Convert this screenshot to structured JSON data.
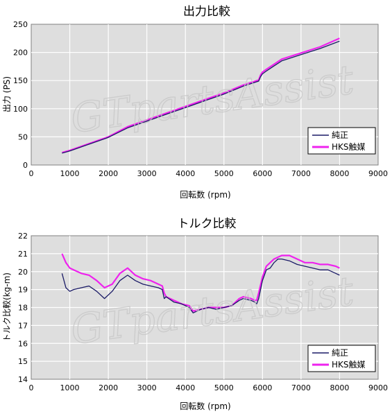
{
  "watermark": "GTpartsAssist",
  "colors": {
    "plot_bg": "#dedede",
    "grid": "#ffffff",
    "stock": "#1a1a66",
    "hks": "#ee22ee"
  },
  "chart_data": [
    {
      "type": "line",
      "title": "出力比較",
      "xlabel": "回転数 (rpm)",
      "ylabel": "出力 (PS)",
      "xlim": [
        0,
        9000
      ],
      "ylim": [
        0,
        250
      ],
      "xticks": [
        0,
        1000,
        2000,
        3000,
        4000,
        5000,
        6000,
        7000,
        8000,
        9000
      ],
      "yticks": [
        0,
        50,
        100,
        150,
        200,
        250
      ],
      "grid": true,
      "legend_position": "bottom-right",
      "series": [
        {
          "name": "純正",
          "color": "#1a1a66",
          "x": [
            800,
            1000,
            1500,
            2000,
            2500,
            3000,
            3500,
            4000,
            4500,
            5000,
            5500,
            5900,
            5950,
            6000,
            6100,
            6300,
            6500,
            7000,
            7500,
            8000
          ],
          "y": [
            21,
            25,
            37,
            49,
            66,
            78,
            90,
            102,
            114,
            126,
            140,
            149,
            157,
            162,
            167,
            176,
            185,
            196,
            207,
            220
          ]
        },
        {
          "name": "HKS触媒",
          "color": "#ee22ee",
          "x": [
            800,
            1000,
            1500,
            2000,
            2500,
            3000,
            3500,
            4000,
            4500,
            5000,
            5500,
            5900,
            5950,
            6000,
            6100,
            6300,
            6500,
            7000,
            7500,
            8000
          ],
          "y": [
            22,
            26,
            38,
            50,
            68,
            80,
            92,
            104,
            116,
            128,
            142,
            151,
            160,
            165,
            170,
            179,
            188,
            199,
            210,
            225
          ]
        }
      ]
    },
    {
      "type": "line",
      "title": "トルク比較",
      "xlabel": "回転数 (rpm)",
      "ylabel": "トルク比較(kg-m)",
      "xlim": [
        0,
        9000
      ],
      "ylim": [
        14,
        22
      ],
      "xticks": [
        0,
        1000,
        2000,
        3000,
        4000,
        5000,
        6000,
        7000,
        8000,
        9000
      ],
      "yticks": [
        14,
        15,
        16,
        17,
        18,
        19,
        20,
        21,
        22
      ],
      "grid": true,
      "legend_position": "bottom-right",
      "series": [
        {
          "name": "純正",
          "color": "#1a1a66",
          "x": [
            800,
            900,
            1000,
            1100,
            1300,
            1500,
            1700,
            1900,
            2100,
            2300,
            2500,
            2700,
            2900,
            3100,
            3300,
            3400,
            3450,
            3500,
            3700,
            3900,
            4100,
            4200,
            4400,
            4600,
            4800,
            5000,
            5200,
            5400,
            5500,
            5700,
            5800,
            5850,
            5900,
            6000,
            6100,
            6200,
            6300,
            6400,
            6500,
            6700,
            6900,
            7100,
            7300,
            7500,
            7700,
            7900,
            8000
          ],
          "y": [
            19.9,
            19.1,
            18.9,
            19.0,
            19.1,
            19.2,
            18.9,
            18.5,
            18.9,
            19.5,
            19.8,
            19.5,
            19.3,
            19.2,
            19.1,
            19.0,
            18.5,
            18.6,
            18.3,
            18.2,
            18.0,
            17.7,
            17.9,
            18.0,
            17.9,
            18.0,
            18.1,
            18.4,
            18.5,
            18.4,
            18.3,
            18.2,
            18.5,
            19.5,
            20.1,
            20.2,
            20.5,
            20.7,
            20.7,
            20.6,
            20.4,
            20.3,
            20.2,
            20.1,
            20.1,
            19.9,
            19.8
          ]
        },
        {
          "name": "HKS触媒",
          "color": "#ee22ee",
          "x": [
            800,
            900,
            1000,
            1100,
            1300,
            1500,
            1700,
            1900,
            2100,
            2300,
            2500,
            2700,
            2900,
            3100,
            3300,
            3400,
            3450,
            3500,
            3700,
            3900,
            4100,
            4200,
            4400,
            4600,
            4800,
            5000,
            5200,
            5400,
            5500,
            5700,
            5800,
            5850,
            5900,
            6000,
            6100,
            6200,
            6300,
            6400,
            6500,
            6700,
            6900,
            7100,
            7300,
            7500,
            7700,
            7900,
            8000
          ],
          "y": [
            21.0,
            20.5,
            20.2,
            20.1,
            19.9,
            19.8,
            19.5,
            19.1,
            19.3,
            19.9,
            20.2,
            19.8,
            19.6,
            19.5,
            19.3,
            19.2,
            18.8,
            18.6,
            18.4,
            18.2,
            18.1,
            17.8,
            17.9,
            18.0,
            18.0,
            18.0,
            18.1,
            18.5,
            18.6,
            18.5,
            18.4,
            18.4,
            18.8,
            19.7,
            20.3,
            20.5,
            20.7,
            20.8,
            20.9,
            20.9,
            20.7,
            20.5,
            20.5,
            20.4,
            20.4,
            20.3,
            20.2
          ]
        }
      ]
    }
  ]
}
